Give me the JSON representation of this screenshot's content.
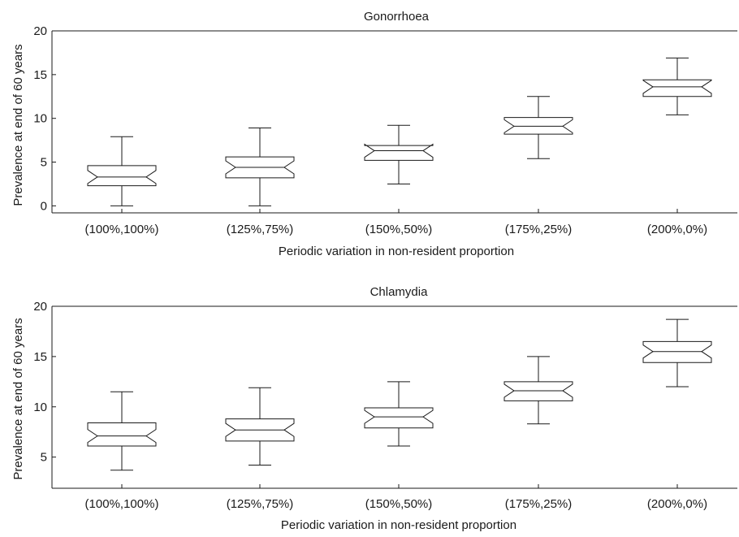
{
  "chart_data": [
    {
      "type": "boxplot",
      "notched": true,
      "title": "Gonorrhoea",
      "xlabel": "Periodic variation in non-resident proportion",
      "ylabel": "Prevalence at end of 60 years",
      "ylim": [
        -0.8,
        20
      ],
      "yticks": [
        0,
        5,
        10,
        15,
        20
      ],
      "categories": [
        "(100%,100%)",
        "(125%,75%)",
        "(150%,50%)",
        "(175%,25%)",
        "(200%,0%)"
      ],
      "boxes": [
        {
          "whisker_low": 0.0,
          "q1": 2.3,
          "median": 3.3,
          "q3": 4.6,
          "whisker_high": 7.9
        },
        {
          "whisker_low": 0.0,
          "q1": 3.2,
          "median": 4.4,
          "q3": 5.6,
          "whisker_high": 8.9
        },
        {
          "whisker_low": 2.5,
          "q1": 5.2,
          "median": 6.3,
          "q3": 6.9,
          "whisker_high": 9.2
        },
        {
          "whisker_low": 5.4,
          "q1": 8.2,
          "median": 9.1,
          "q3": 10.1,
          "whisker_high": 12.5
        },
        {
          "whisker_low": 10.4,
          "q1": 12.5,
          "median": 13.6,
          "q3": 14.4,
          "whisker_high": 16.9
        }
      ]
    },
    {
      "type": "boxplot",
      "notched": true,
      "title": "Chlamydia",
      "xlabel": "Periodic variation in non-resident proportion",
      "ylabel": "Prevalence at end of 60 years",
      "ylim": [
        1.9,
        20
      ],
      "yticks": [
        5,
        10,
        15,
        20
      ],
      "categories": [
        "(100%,100%)",
        "(125%,75%)",
        "(150%,50%)",
        "(175%,25%)",
        "(200%,0%)"
      ],
      "boxes": [
        {
          "whisker_low": 3.7,
          "q1": 6.1,
          "median": 7.1,
          "q3": 8.4,
          "whisker_high": 11.5
        },
        {
          "whisker_low": 4.2,
          "q1": 6.6,
          "median": 7.7,
          "q3": 8.8,
          "whisker_high": 11.9
        },
        {
          "whisker_low": 6.1,
          "q1": 7.9,
          "median": 9.0,
          "q3": 9.9,
          "whisker_high": 12.5
        },
        {
          "whisker_low": 8.3,
          "q1": 10.6,
          "median": 11.6,
          "q3": 12.5,
          "whisker_high": 15.0
        },
        {
          "whisker_low": 12.0,
          "q1": 14.4,
          "median": 15.5,
          "q3": 16.5,
          "whisker_high": 18.7
        }
      ]
    }
  ]
}
